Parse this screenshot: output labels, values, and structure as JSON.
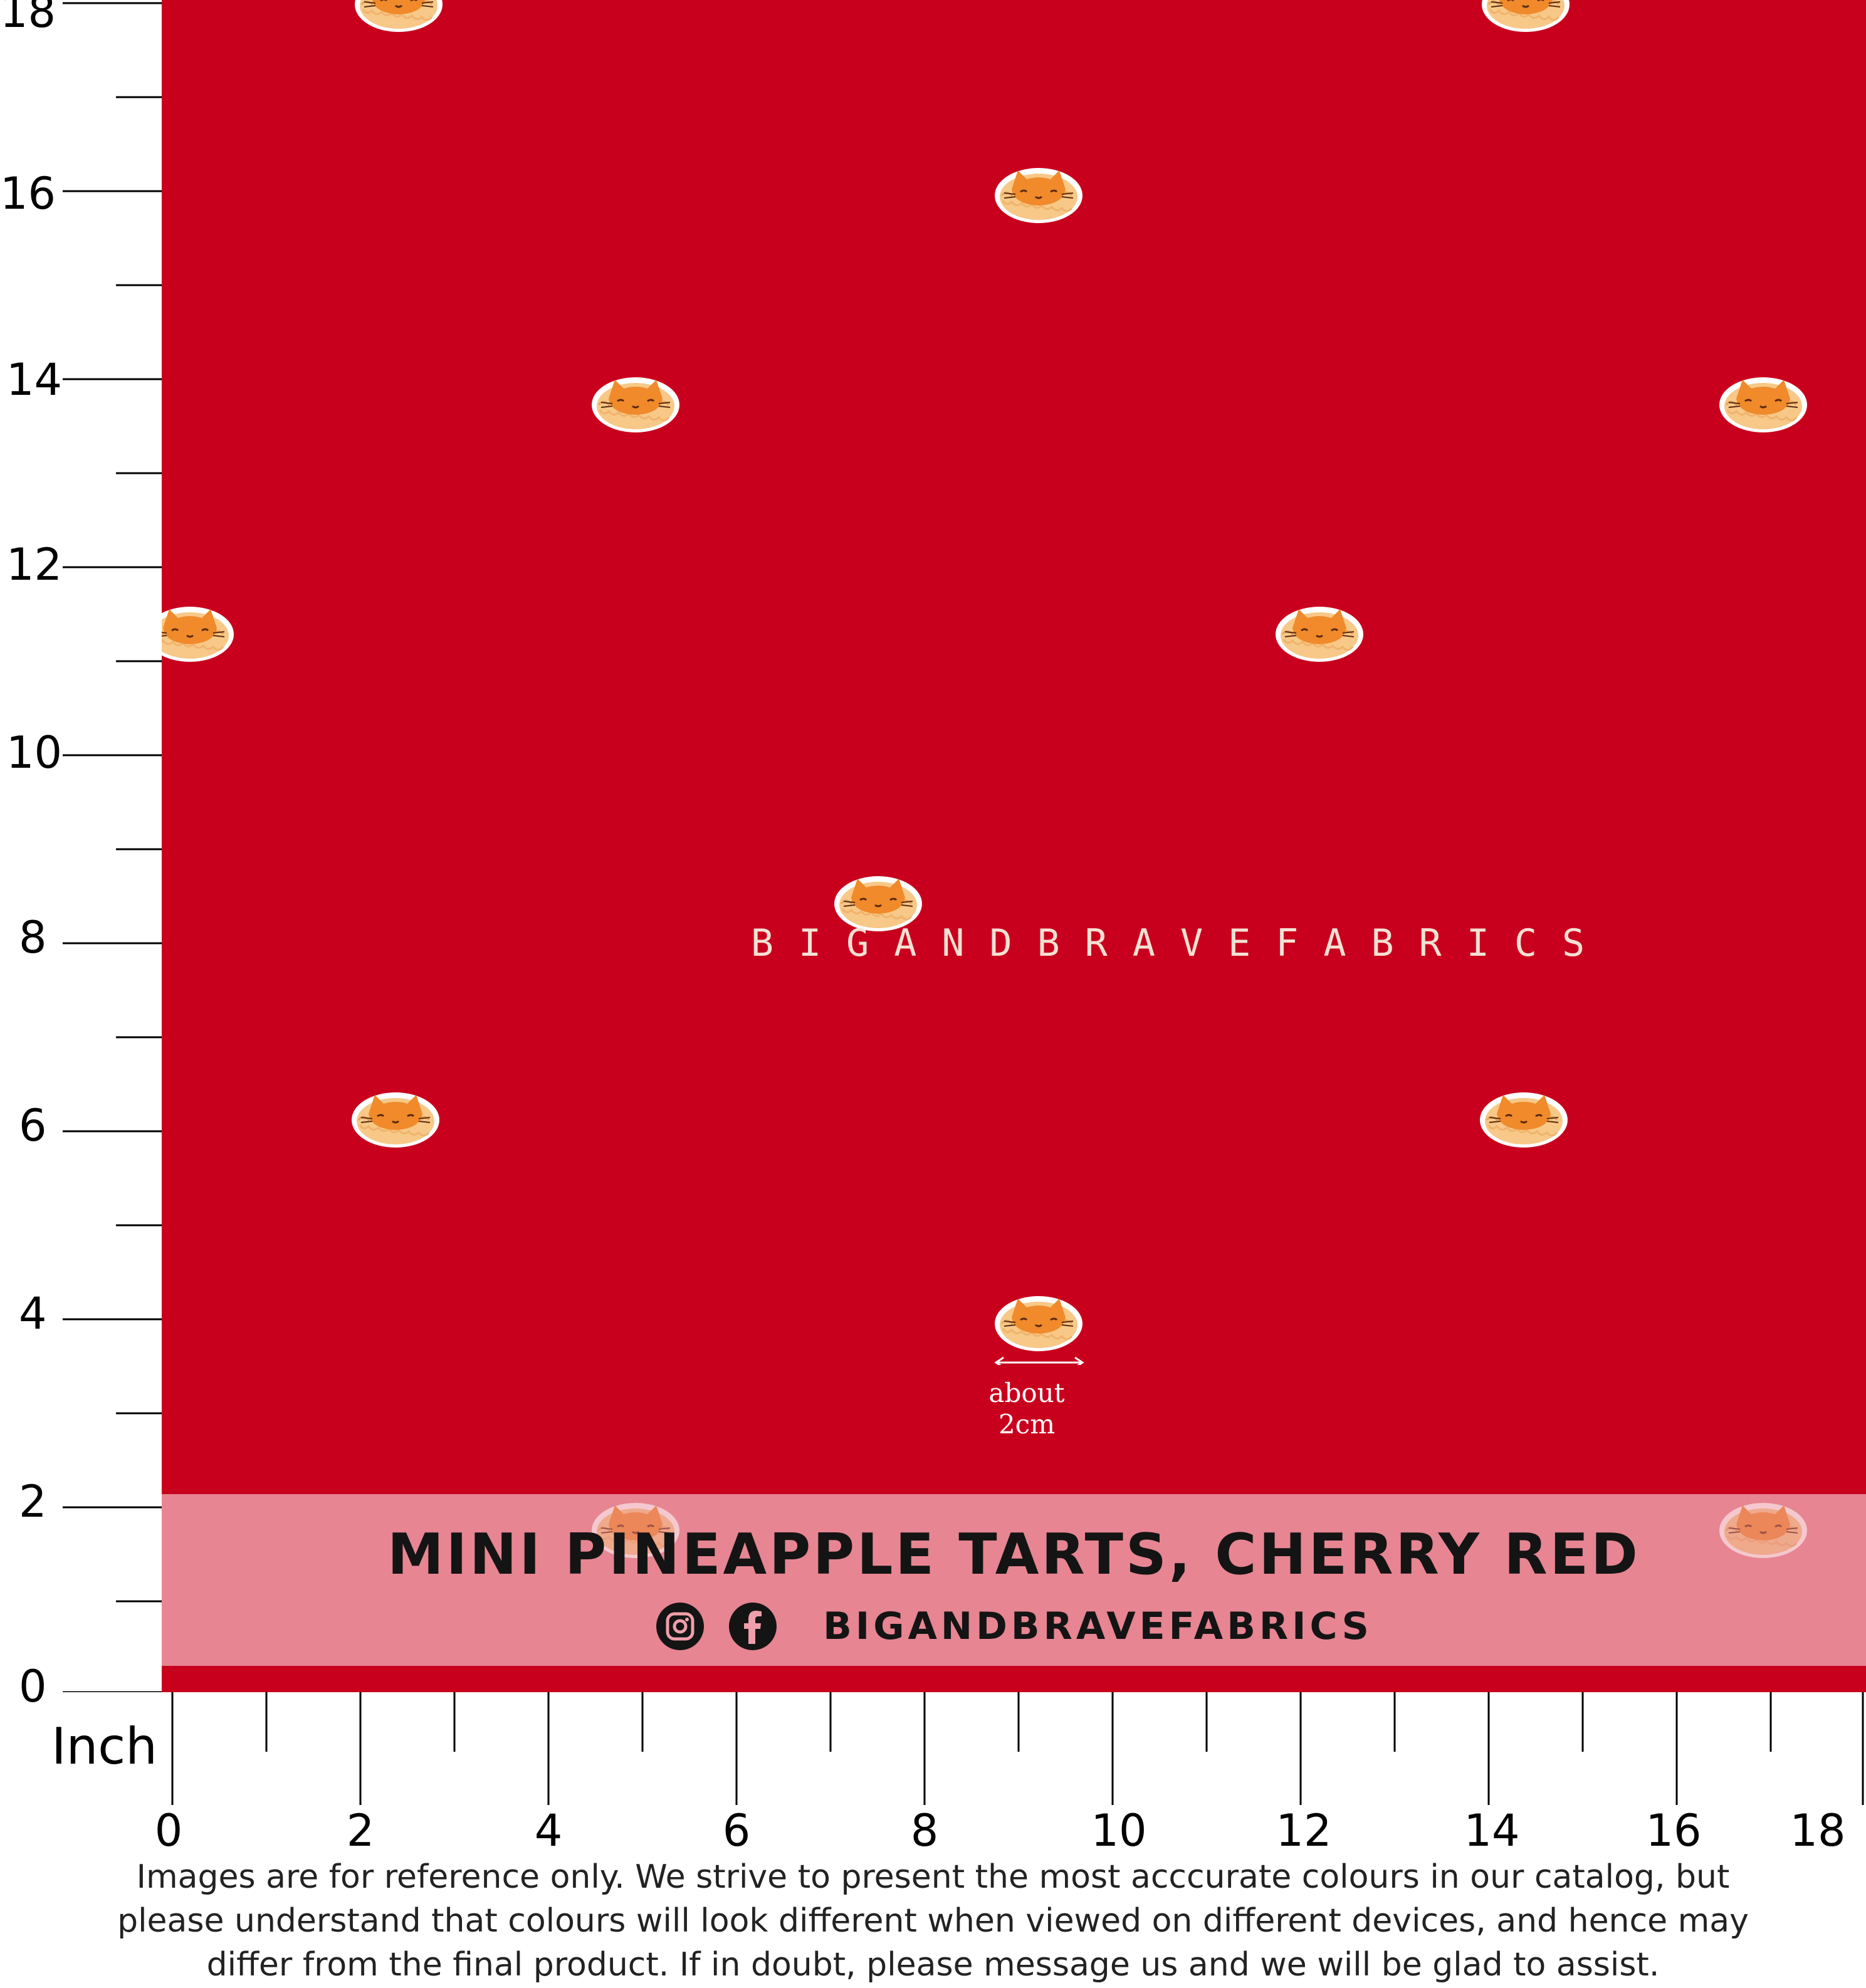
{
  "fabric": {
    "background_color": "#c9001d",
    "band_color": "#ef9faa",
    "watermark": "BIGANDBRAVEFABRICS",
    "motif_icon": "cat-pineapple-tart-icon",
    "size_note": {
      "line1": "about",
      "line2": "2cm"
    }
  },
  "label": {
    "title": "MINI PINEAPPLE TARTS, CHERRY RED",
    "instagram_icon": "instagram-icon",
    "facebook_icon": "facebook-icon",
    "handle": "BIGANDBRAVEFABRICS"
  },
  "ruler": {
    "unit": "Inch",
    "left_labels": [
      "18",
      "16",
      "14",
      "12",
      "10",
      "8",
      "6",
      "4",
      "2",
      "0"
    ],
    "bottom_labels": [
      "0",
      "2",
      "4",
      "6",
      "8",
      "10",
      "12",
      "14",
      "16",
      "18"
    ]
  },
  "disclaimer": {
    "line1": "Images are for reference only. We strive to present the most acccurate colours in our catalog, but",
    "line2": "please understand that colours will look different when viewed on different devices, and hence may",
    "line3": "differ from the final product. If in doubt, please message us and we will be glad to assist."
  }
}
